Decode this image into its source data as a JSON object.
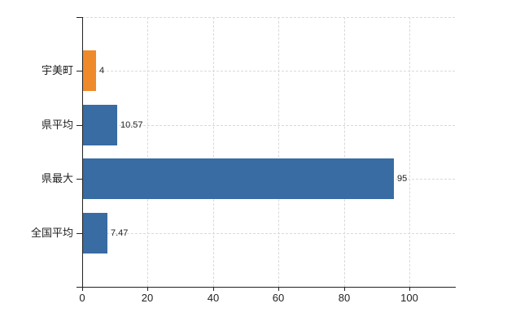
{
  "chart_data": {
    "type": "bar",
    "orientation": "horizontal",
    "categories": [
      "宇美町",
      "県平均",
      "県最大",
      "全国平均"
    ],
    "values": [
      4,
      10.57,
      95,
      7.47
    ],
    "value_labels": [
      "4",
      "10.57",
      "95",
      "7.47"
    ],
    "bar_colors": [
      "#ef8a2b",
      "#386ca3",
      "#386ca3",
      "#386ca3"
    ],
    "x_ticks": [
      0,
      20,
      40,
      60,
      80,
      100
    ],
    "x_tick_labels": [
      "0",
      "20",
      "40",
      "60",
      "80",
      "100"
    ],
    "xlim": [
      0,
      114
    ],
    "grid": true,
    "legend": false,
    "colors": {
      "grid": "#d9d9d9",
      "axis": "#222222",
      "text": "#222222",
      "background": "#ffffff"
    }
  }
}
